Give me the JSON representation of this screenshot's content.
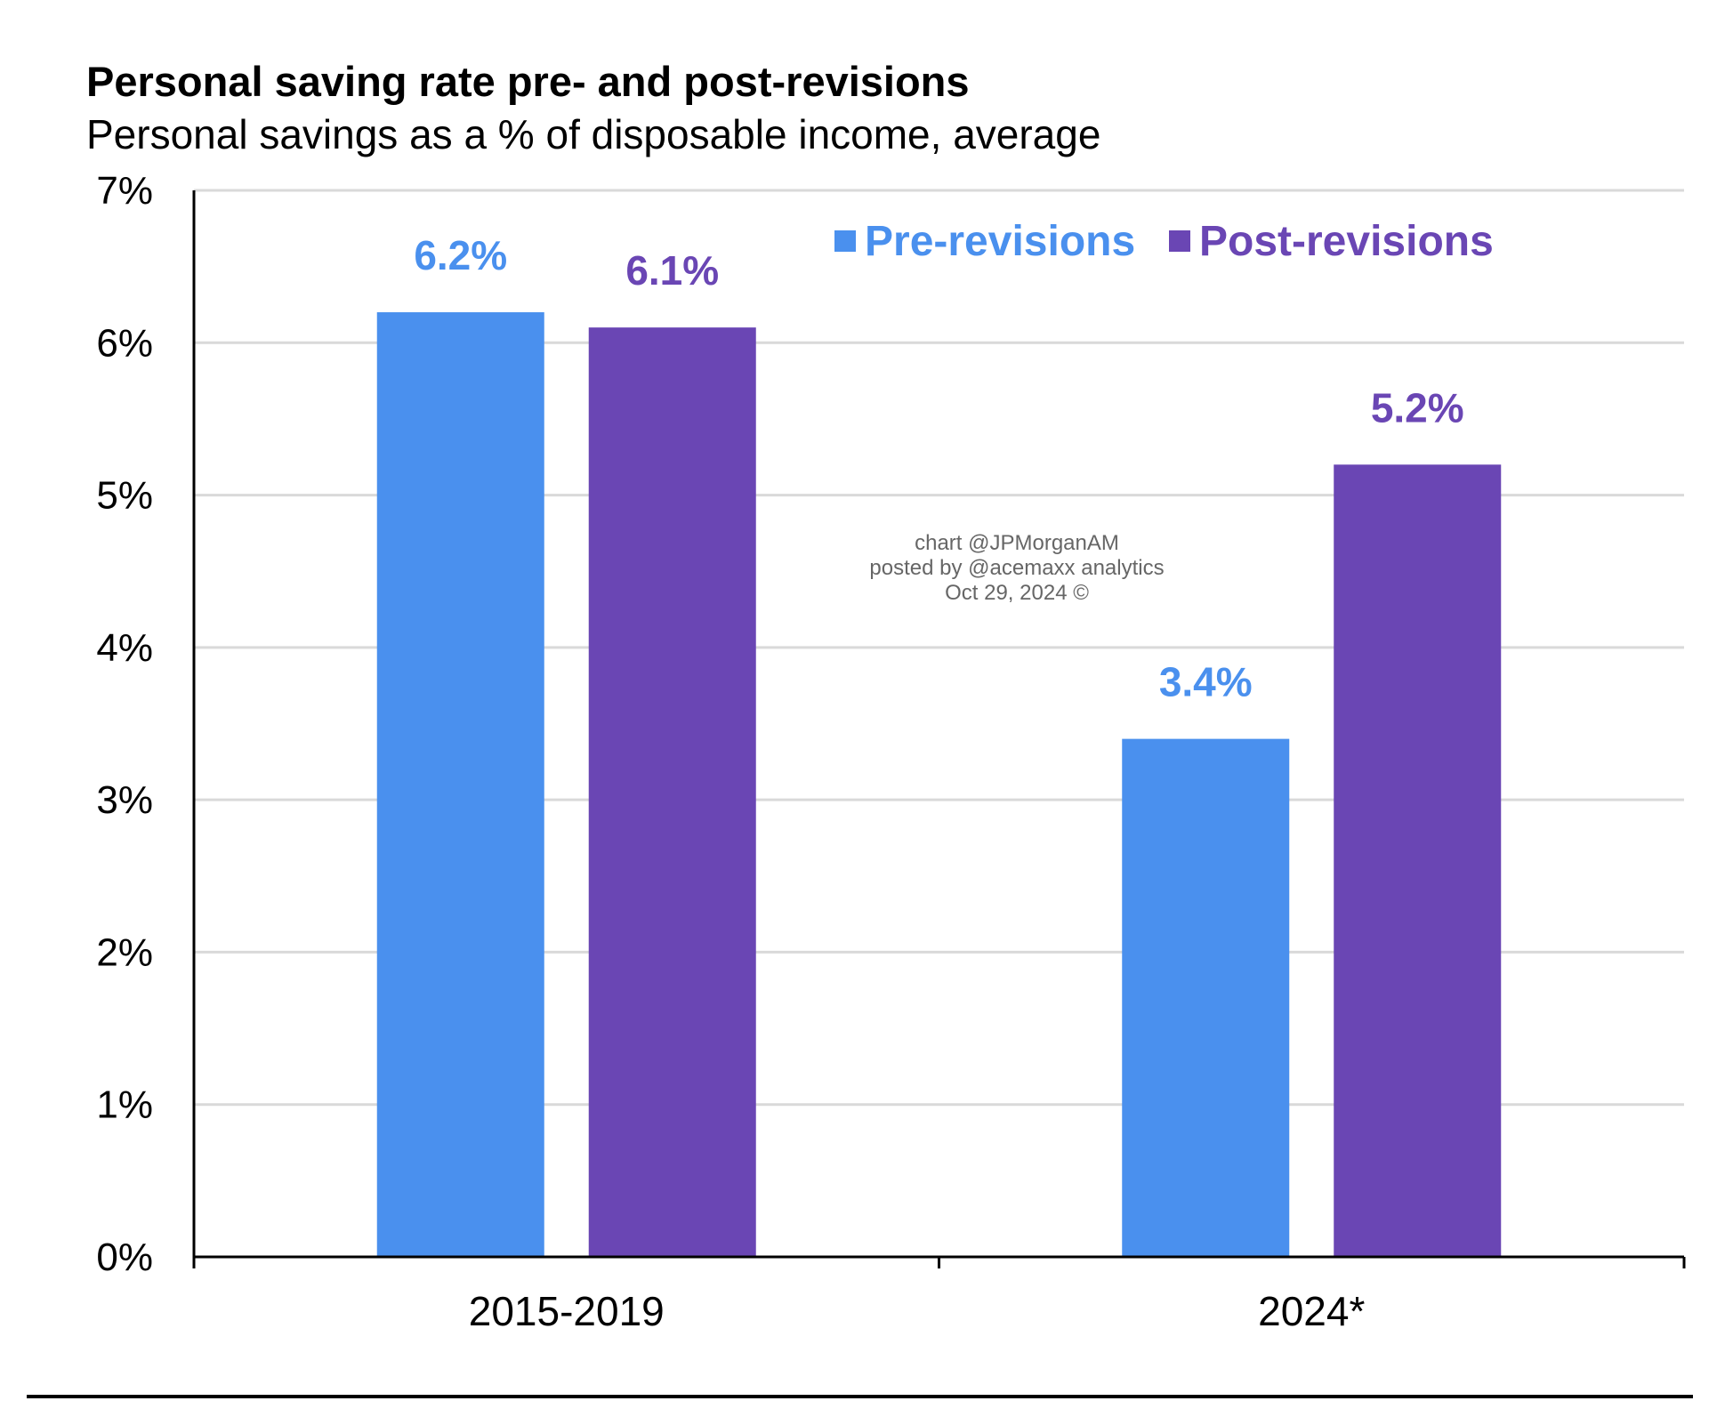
{
  "chart_data": {
    "type": "bar",
    "title": "Personal saving rate pre- and post-revisions",
    "subtitle": "Personal savings as a % of disposable income, average",
    "categories": [
      "2015-2019",
      "2024*"
    ],
    "series": [
      {
        "name": "Pre-revisions",
        "color": "#4a90ee",
        "values": [
          6.2,
          3.4
        ],
        "labels": [
          "6.2%",
          "3.4%"
        ]
      },
      {
        "name": "Post-revisions",
        "color": "#6a46b4",
        "values": [
          6.1,
          5.2
        ],
        "labels": [
          "6.1%",
          "5.2%"
        ]
      }
    ],
    "yticks": [
      "0%",
      "1%",
      "2%",
      "3%",
      "4%",
      "5%",
      "6%",
      "7%"
    ],
    "ylim": [
      0,
      7
    ],
    "grid": true,
    "legend_position": "top-right"
  },
  "watermark": [
    "chart @JPMorganAM",
    "posted by @acemaxx analytics",
    "Oct 29, 2024 ©"
  ]
}
